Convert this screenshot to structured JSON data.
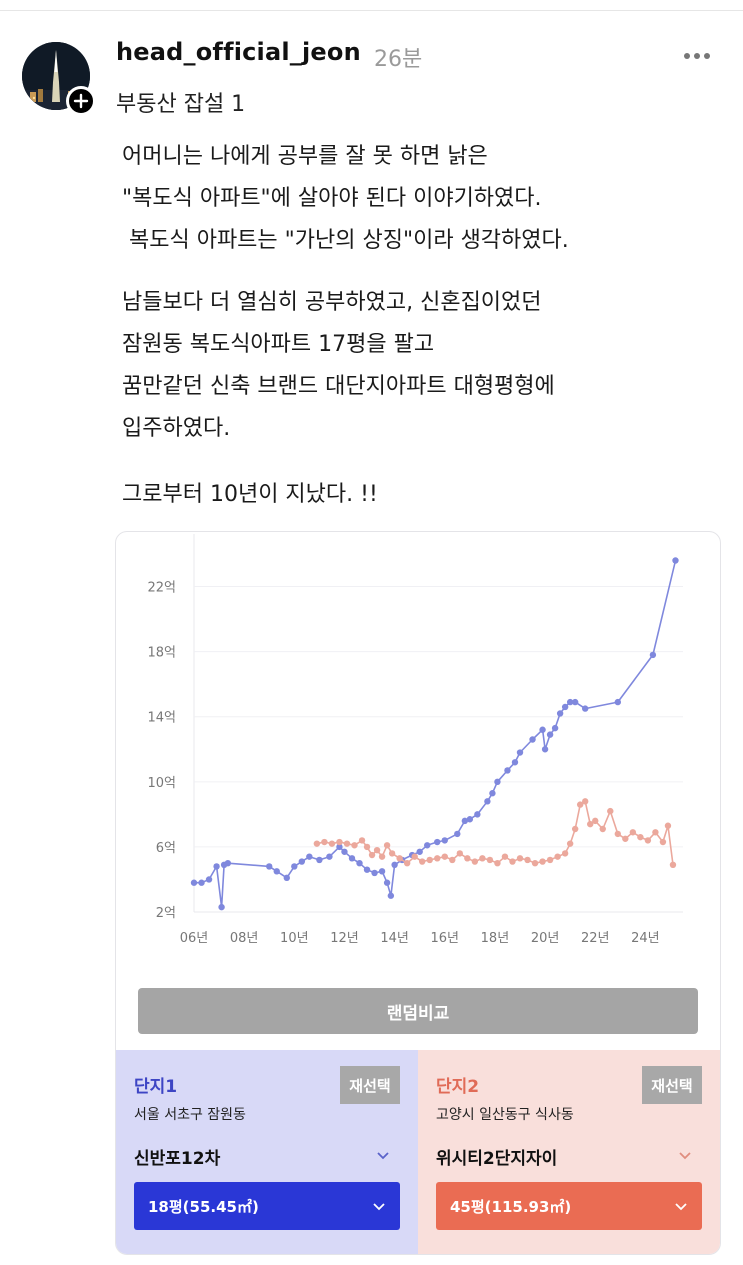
{
  "post": {
    "username": "head_official_jeon",
    "time": "26분",
    "topic": "부동산 잡설 1",
    "paragraph1": "어머니는 나에게 공부를 잘 못 하면 낡은\n\"복도식 아파트\"에 살아야 된다 이야기하였다.\n 복도식 아파트는 \"가난의 상징\"이라 생각하였다.",
    "paragraph2": "남들보다 더 열심히 공부하였고, 신혼집이었던\n잠원동 복도식아파트 17평을 팔고\n꿈만같던 신축 브랜드 대단지아파트 대형평형에\n입주하였다.",
    "paragraph3": "그로부터 10년이 지났다. !!"
  },
  "icons": {
    "avatar": "avatar-night-tower",
    "follow": "plus-icon",
    "more": "more-horizontal-icon",
    "dropdown": "chevron-down-icon"
  },
  "chart_data": {
    "type": "line",
    "yunit": "억",
    "ylim": [
      2,
      24
    ],
    "yticks": [
      "2억",
      "6억",
      "10억",
      "14억",
      "18억",
      "22억"
    ],
    "xticks": [
      "06년",
      "08년",
      "10년",
      "12년",
      "14년",
      "16년",
      "18년",
      "20년",
      "22년",
      "24년"
    ],
    "xlim": [
      2006,
      2025.5
    ],
    "series": [
      {
        "color": "#7f88dd",
        "x": [
          2006.0,
          2006.3,
          2006.6,
          2006.9,
          2007.1,
          2007.2,
          2007.35,
          2009.0,
          2009.3,
          2009.7,
          2010.0,
          2010.3,
          2010.6,
          2011.0,
          2011.4,
          2011.8,
          2012.0,
          2012.3,
          2012.6,
          2012.9,
          2013.2,
          2013.5,
          2013.7,
          2013.85,
          2014.0,
          2014.3,
          2014.7,
          2015.0,
          2015.3,
          2015.7,
          2016.0,
          2016.5,
          2016.8,
          2017.0,
          2017.3,
          2017.7,
          2017.9,
          2018.1,
          2018.5,
          2018.8,
          2019.0,
          2019.5,
          2019.9,
          2020.0,
          2020.2,
          2020.4,
          2020.6,
          2020.8,
          2021.0,
          2021.2,
          2021.6,
          2022.9,
          2024.3,
          2025.2
        ],
        "values": [
          3.8,
          3.8,
          4.0,
          4.8,
          2.3,
          4.9,
          5.0,
          4.8,
          4.5,
          4.1,
          4.8,
          5.1,
          5.4,
          5.2,
          5.4,
          6.0,
          5.7,
          5.3,
          5.0,
          4.6,
          4.4,
          4.5,
          3.8,
          3.0,
          4.9,
          5.2,
          5.5,
          5.7,
          6.1,
          6.3,
          6.4,
          6.8,
          7.6,
          7.7,
          8.0,
          8.8,
          9.3,
          10.0,
          10.7,
          11.2,
          11.8,
          12.6,
          13.2,
          12.0,
          12.9,
          13.3,
          14.2,
          14.6,
          14.9,
          14.9,
          14.5,
          14.9,
          17.8,
          23.6
        ]
      },
      {
        "color": "#eba89c",
        "x": [
          2010.9,
          2011.2,
          2011.5,
          2011.8,
          2012.1,
          2012.4,
          2012.7,
          2012.9,
          2013.1,
          2013.3,
          2013.5,
          2013.7,
          2013.9,
          2014.2,
          2014.5,
          2014.8,
          2015.1,
          2015.4,
          2015.7,
          2016.0,
          2016.3,
          2016.6,
          2016.9,
          2017.2,
          2017.5,
          2017.8,
          2018.1,
          2018.4,
          2018.7,
          2019.0,
          2019.3,
          2019.6,
          2019.9,
          2020.2,
          2020.5,
          2020.8,
          2021.0,
          2021.2,
          2021.4,
          2021.6,
          2021.8,
          2022.0,
          2022.3,
          2022.6,
          2022.9,
          2023.2,
          2023.5,
          2023.8,
          2024.1,
          2024.4,
          2024.7,
          2024.9,
          2025.1
        ],
        "values": [
          6.2,
          6.3,
          6.2,
          6.3,
          6.2,
          6.1,
          6.4,
          6.0,
          5.5,
          5.8,
          5.4,
          6.1,
          5.6,
          5.3,
          5.0,
          5.4,
          5.1,
          5.2,
          5.3,
          5.4,
          5.2,
          5.6,
          5.3,
          5.1,
          5.3,
          5.2,
          5.0,
          5.4,
          5.1,
          5.3,
          5.2,
          5.0,
          5.1,
          5.2,
          5.4,
          5.6,
          6.2,
          7.1,
          8.6,
          8.8,
          7.4,
          7.6,
          7.1,
          8.2,
          6.8,
          6.5,
          6.9,
          6.6,
          6.4,
          6.9,
          6.3,
          7.3,
          4.9
        ]
      }
    ]
  },
  "compare": {
    "random_button": "랜덤비교",
    "complex1": {
      "title": "단지1",
      "reselect": "재선택",
      "region": "서울 서초구 잠원동",
      "apt": "신반포12차",
      "size": "18평(55.45㎡)",
      "color": "#2a37d6"
    },
    "complex2": {
      "title": "단지2",
      "reselect": "재선택",
      "region": "고양시 일산동구 식사동",
      "apt": "위시티2단지자이",
      "size": "45평(115.93㎡)",
      "color": "#ea6c53"
    }
  }
}
